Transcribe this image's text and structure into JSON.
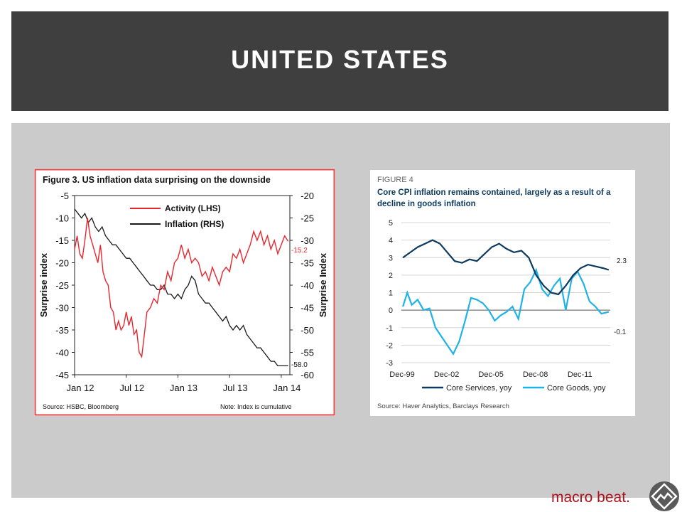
{
  "slide": {
    "title": "UNITED STATES",
    "brand_text": "macro beat.",
    "brand_logo_icon": "macro-beat-logo-icon"
  },
  "colors": {
    "title_bar": "#3f3f3f",
    "panel": "#cbcbcb",
    "activity_red": "#e8262e",
    "inflation_black": "#1a1a1a",
    "services_navy": "#0d3a5e",
    "goods_cyan": "#1fb2e8",
    "brand_red": "#b01018"
  },
  "chart_data": [
    {
      "type": "line",
      "title": "Figure 3. US inflation data surprising on the downside",
      "xlabel": "",
      "ylabel": "Surprise index",
      "ylabel_right": "Surprise Index",
      "x_ticks": [
        "Jan 12",
        "Jul 12",
        "Jan 13",
        "Jul 13",
        "Jan 14"
      ],
      "y_ticks_left": [
        "-5",
        "-10",
        "-15",
        "-20",
        "-25",
        "-30",
        "-35",
        "-40",
        "-45"
      ],
      "y_ticks_right": [
        "-20",
        "-25",
        "-30",
        "-35",
        "-40",
        "-45",
        "-50",
        "-55",
        "-60"
      ],
      "ylim_left": [
        -45,
        -5
      ],
      "ylim_right": [
        -60,
        -20
      ],
      "legend_position": "top-center",
      "grid": false,
      "source": "Source: HSBC, Bloomberg",
      "note": "Note: Index is cumulative",
      "series": [
        {
          "name": "Activity (LHS)",
          "axis": "left",
          "end_label": "-15.2",
          "x": [
            0,
            0.3,
            0.6,
            0.9,
            1.2,
            1.5,
            1.8,
            2.1,
            2.4,
            2.7,
            3.0,
            3.3,
            3.6,
            3.9,
            4.2,
            4.5,
            4.8,
            5.1,
            5.4,
            5.7,
            6.0,
            6.3,
            6.6,
            6.9,
            7.2,
            7.5,
            7.8,
            8.1,
            8.4,
            8.8,
            9.2,
            9.6,
            10.0,
            10.4,
            10.8,
            11.2,
            11.6,
            12.0,
            12.4,
            12.8,
            13.2,
            13.6,
            14.0,
            14.4,
            14.8,
            15.2,
            15.6,
            16.0,
            16.4,
            16.8,
            17.2,
            17.6,
            18.0,
            18.4,
            18.8,
            19.2,
            19.6,
            20.0,
            20.4,
            20.8,
            21.2,
            21.6,
            22.0,
            22.4,
            22.8,
            23.2,
            23.6,
            24.0,
            24.4,
            24.8
          ],
          "values": [
            -17,
            -14,
            -18,
            -19,
            -15,
            -10,
            -14,
            -16,
            -18,
            -20,
            -16,
            -22,
            -24,
            -25,
            -30,
            -31,
            -35,
            -33,
            -35,
            -34,
            -31,
            -34,
            -32,
            -36,
            -35,
            -40,
            -41,
            -36,
            -31,
            -30,
            -28,
            -29,
            -25,
            -26,
            -22,
            -24,
            -20,
            -19,
            -16,
            -19,
            -17,
            -20,
            -19,
            -20,
            -23,
            -22,
            -24,
            -21,
            -23,
            -25,
            -22,
            -21,
            -22,
            -18,
            -19,
            -17,
            -20,
            -18,
            -16,
            -13,
            -15,
            -13,
            -16,
            -14,
            -17,
            -15,
            -18,
            -16,
            -14,
            -15.2
          ]
        },
        {
          "name": "Inflation (RHS)",
          "axis": "right",
          "end_label": "-58.0",
          "x": [
            0,
            0.4,
            0.8,
            1.2,
            1.6,
            2.0,
            2.4,
            2.8,
            3.2,
            3.6,
            4.0,
            4.4,
            4.8,
            5.2,
            5.6,
            6.0,
            6.4,
            6.8,
            7.2,
            7.6,
            8.0,
            8.4,
            8.8,
            9.2,
            9.6,
            10.0,
            10.4,
            10.8,
            11.2,
            11.6,
            12.0,
            12.4,
            12.8,
            13.2,
            13.6,
            14.0,
            14.4,
            14.8,
            15.2,
            15.6,
            16.0,
            16.4,
            16.8,
            17.2,
            17.6,
            18.0,
            18.4,
            18.8,
            19.2,
            19.6,
            20.0,
            20.4,
            20.8,
            21.2,
            21.6,
            22.0,
            22.4,
            22.8,
            23.2,
            23.6,
            24.0,
            24.4,
            24.8
          ],
          "values": [
            -23,
            -24,
            -25,
            -24,
            -26,
            -25,
            -27,
            -28,
            -27,
            -29,
            -30,
            -31,
            -31,
            -32,
            -33,
            -34,
            -34,
            -35,
            -36,
            -37,
            -38,
            -39,
            -40,
            -40,
            -41,
            -41,
            -40,
            -42,
            -42,
            -43,
            -42,
            -43,
            -41,
            -40,
            -38,
            -39,
            -42,
            -43,
            -44,
            -44,
            -45,
            -46,
            -47,
            -48,
            -47,
            -49,
            -50,
            -49,
            -50,
            -49,
            -51,
            -52,
            -53,
            -54,
            -54,
            -55,
            -56,
            -57,
            -57,
            -58,
            -58,
            -58,
            -58
          ]
        }
      ]
    },
    {
      "type": "line",
      "figure_label": "FIGURE 4",
      "title": "Core CPI inflation remains contained, largely as a result of a decline in goods inflation",
      "xlabel": "",
      "ylabel": "",
      "x_ticks": [
        "Dec-99",
        "Dec-02",
        "Dec-05",
        "Dec-08",
        "Dec-11"
      ],
      "y_ticks": [
        "5",
        "4",
        "3",
        "2",
        "1",
        "0",
        "-1",
        "-2",
        "-3"
      ],
      "ylim": [
        -3,
        5
      ],
      "xlim": [
        1999.9,
        2014.0
      ],
      "grid": true,
      "legend_position": "bottom",
      "source": "Source: Haver Analytics, Barclays Research",
      "series": [
        {
          "name": "Core Services, yoy",
          "end_label": "2.3",
          "x": [
            2000.0,
            2000.5,
            2001.0,
            2001.5,
            2002.0,
            2002.5,
            2003.0,
            2003.5,
            2004.0,
            2004.5,
            2005.0,
            2005.5,
            2006.0,
            2006.5,
            2007.0,
            2007.5,
            2008.0,
            2008.5,
            2009.0,
            2009.5,
            2010.0,
            2010.5,
            2011.0,
            2011.5,
            2012.0,
            2012.5,
            2013.0,
            2013.5,
            2013.9
          ],
          "values": [
            3.0,
            3.3,
            3.6,
            3.8,
            4.0,
            3.8,
            3.3,
            2.8,
            2.7,
            2.9,
            2.8,
            3.2,
            3.6,
            3.8,
            3.5,
            3.3,
            3.4,
            3.0,
            2.0,
            1.4,
            1.0,
            0.9,
            1.4,
            2.0,
            2.4,
            2.6,
            2.5,
            2.4,
            2.3
          ]
        },
        {
          "name": "Core Goods, yoy",
          "end_label": "-0.1",
          "x": [
            2000.0,
            2000.3,
            2000.6,
            2001.0,
            2001.4,
            2001.8,
            2002.2,
            2002.6,
            2003.0,
            2003.4,
            2003.8,
            2004.2,
            2004.6,
            2005.0,
            2005.4,
            2005.8,
            2006.2,
            2006.6,
            2007.0,
            2007.4,
            2007.8,
            2008.2,
            2008.6,
            2009.0,
            2009.4,
            2009.8,
            2010.2,
            2010.6,
            2011.0,
            2011.4,
            2011.8,
            2012.2,
            2012.6,
            2013.0,
            2013.4,
            2013.9
          ],
          "values": [
            0.2,
            1.0,
            0.3,
            0.6,
            0.0,
            0.1,
            -1.0,
            -1.5,
            -2.0,
            -2.5,
            -1.8,
            -0.6,
            0.7,
            0.6,
            0.4,
            0.0,
            -0.6,
            -0.3,
            -0.1,
            0.2,
            -0.5,
            1.2,
            1.6,
            2.3,
            1.2,
            0.8,
            1.4,
            1.8,
            0.0,
            1.8,
            2.2,
            1.5,
            0.5,
            0.2,
            -0.2,
            -0.1
          ]
        }
      ]
    }
  ]
}
